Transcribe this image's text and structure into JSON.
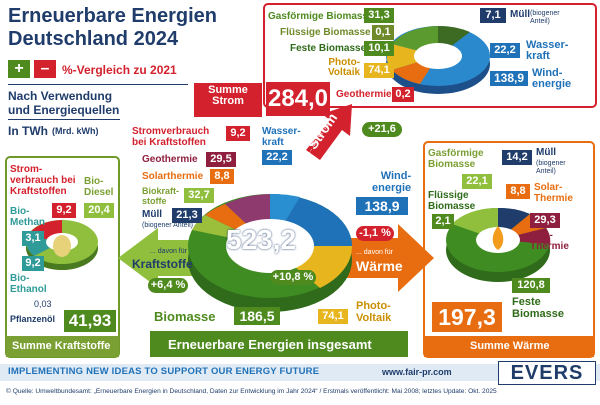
{
  "header": {
    "title_line1": "Erneuerbare Energien",
    "title_line2": "Deutschland 2024",
    "legend_plus": "+",
    "legend_minus": "–",
    "legend_text": "%-Vergleich zu 2021",
    "subtitle_line1": "Nach Verwendung",
    "subtitle_line2": "und Energiequellen",
    "unit_main": "In TWh",
    "unit_sub": "(Mrd. kWh)"
  },
  "strom": {
    "summe_label_line1": "Summe",
    "summe_label_line2": "Strom",
    "summe_value": "284,0",
    "items": [
      {
        "label": "Gasförmige Biomasse",
        "value": "31,3"
      },
      {
        "label": "Flüssige Biomasse",
        "value": "0,1"
      },
      {
        "label": "Feste Biomasse",
        "value": "10,1"
      },
      {
        "label_line1": "Photo-",
        "label_line2": "Voltaik",
        "value": "74,1"
      },
      {
        "label": "Geothermie",
        "value": "0,2"
      },
      {
        "label": "Müll",
        "note_line1": "(biogener",
        "note_line2": "Anteil)",
        "value": "7,1"
      },
      {
        "label_line1": "Wasser-",
        "label_line2": "kraft",
        "value": "22,2"
      },
      {
        "label_line1": "Wind-",
        "label_line2": "energie",
        "value": "138,9"
      }
    ]
  },
  "center": {
    "total": "523,2",
    "change": "+10,8 %",
    "footer_label": "Erneuerbare Energien insgesamt",
    "items": [
      {
        "label_line1": "Stromverbrauch",
        "label_line2": "bei Kraftstoffen",
        "value": "9,2"
      },
      {
        "label": "Geothermie",
        "value": "29,5"
      },
      {
        "label": "Solarthermie",
        "value": "8,8"
      },
      {
        "label_line1": "Biokraft-",
        "label_line2": "stoffe",
        "value": "32,7"
      },
      {
        "label": "Müll",
        "note": "(biogener Anteil)",
        "value": "21,3"
      },
      {
        "label_line1": "Wasser-",
        "label_line2": "kraft",
        "value": "22,2"
      },
      {
        "label_line1": "Wind-",
        "label_line2": "energie",
        "value": "138,9"
      },
      {
        "label": "Biomasse",
        "value": "186,5"
      },
      {
        "label_line1": "Photo-",
        "label_line2": "Voltaik",
        "value": "74,1"
      }
    ]
  },
  "arrows": {
    "strom": {
      "davon": "... davon für",
      "label": "Strom",
      "change": "+21,6 %"
    },
    "kraft": {
      "davon": "... davon für",
      "label": "Kraftstoffe",
      "change": "+6,4 %"
    },
    "waerme": {
      "davon": "... davon für",
      "label": "Wärme",
      "change": "-1,1 %"
    }
  },
  "kraftstoffe": {
    "summe_label": "Summe Kraftstoffe",
    "summe_value": "41,93",
    "items": [
      {
        "label_line1": "Strom-",
        "label_line2": "verbrauch bei",
        "label_line3": "Kraftstoffen",
        "value": "9,2"
      },
      {
        "label_line1": "Bio-",
        "label_line2": "Diesel",
        "value": "20,4"
      },
      {
        "label_line1": "Bio-",
        "label_line2": "Methan",
        "value": "3,1"
      },
      {
        "label_line1": "Bio-",
        "label_line2": "Ethanol",
        "value": "9,2"
      },
      {
        "label": "Pflanzenöl",
        "value": "0,03"
      }
    ]
  },
  "waerme": {
    "summe_label": "Summe Wärme",
    "summe_value": "197,3",
    "items": [
      {
        "label_line1": "Gasförmige",
        "label_line2": "Biomasse",
        "value": "22,1"
      },
      {
        "label": "Müll",
        "note_line1": "(biogener",
        "note_line2": "Anteil)",
        "value": "14,2"
      },
      {
        "label_line1": "Flüssige",
        "label_line2": "Biomasse",
        "value": "2,1"
      },
      {
        "label_line1": "Solar-",
        "label_line2": "Thermie",
        "value": "8,8"
      },
      {
        "label_line1": "Geo-",
        "label_line2": "Thermie",
        "value": "29,3"
      },
      {
        "label_line1": "Feste",
        "label_line2": "Biomasse",
        "value": "120,8"
      }
    ]
  },
  "footer": {
    "slogan": "IMPLEMENTING NEW IDEAS TO SUPPORT OUR ENERGY FUTURE",
    "url": "www.fair-pr.com",
    "logo": "EVERS",
    "source": "© Quelle: Umweltbundesamt: „Erneuerbare Energien in Deutschland, Daten zur Entwicklung im Jahr 2024“ / Erstmals veröffentlicht: Mai 2008; letztes Update: Okt. 2025"
  },
  "chart_data": [
    {
      "type": "pie",
      "categories": [
        "Biomasse",
        "Wasserkraft",
        "Windenergie",
        "Photovoltaik",
        "Geothermie",
        "Solarthermie",
        "Biokraftstoffe",
        "Müll (biogener Anteil)",
        "Stromverbrauch bei Kraftstoffen"
      ],
      "values": [
        186.5,
        22.2,
        138.9,
        74.1,
        29.5,
        8.8,
        32.7,
        21.3,
        9.2
      ],
      "total": 523.2
    },
    {
      "type": "pie",
      "categories": [
        "Gasförmige Biomasse",
        "Flüssige Biomasse",
        "Feste Biomasse",
        "Photovoltaik",
        "Geothermie",
        "Müll (biogener Anteil)",
        "Wasserkraft",
        "Windenergie"
      ],
      "values": [
        31.3,
        0.1,
        10.1,
        74.1,
        0.2,
        7.1,
        22.2,
        138.9
      ],
      "total": 284.0
    },
    {
      "type": "pie",
      "categories": [
        "Gasförmige Biomasse",
        "Müll (biogener Anteil)",
        "Flüssige Biomasse",
        "Solarthermie",
        "Geothermie",
        "Feste Biomasse"
      ],
      "values": [
        22.1,
        14.2,
        2.1,
        8.8,
        29.3,
        120.8
      ],
      "total": 197.3
    },
    {
      "type": "pie",
      "categories": [
        "Stromverbrauch bei Kraftstoffen",
        "Biodiesel",
        "Biomethan",
        "Bioethanol",
        "Pflanzenöl"
      ],
      "values": [
        9.2,
        20.4,
        3.1,
        9.2,
        0.03
      ],
      "total": 41.93
    }
  ]
}
